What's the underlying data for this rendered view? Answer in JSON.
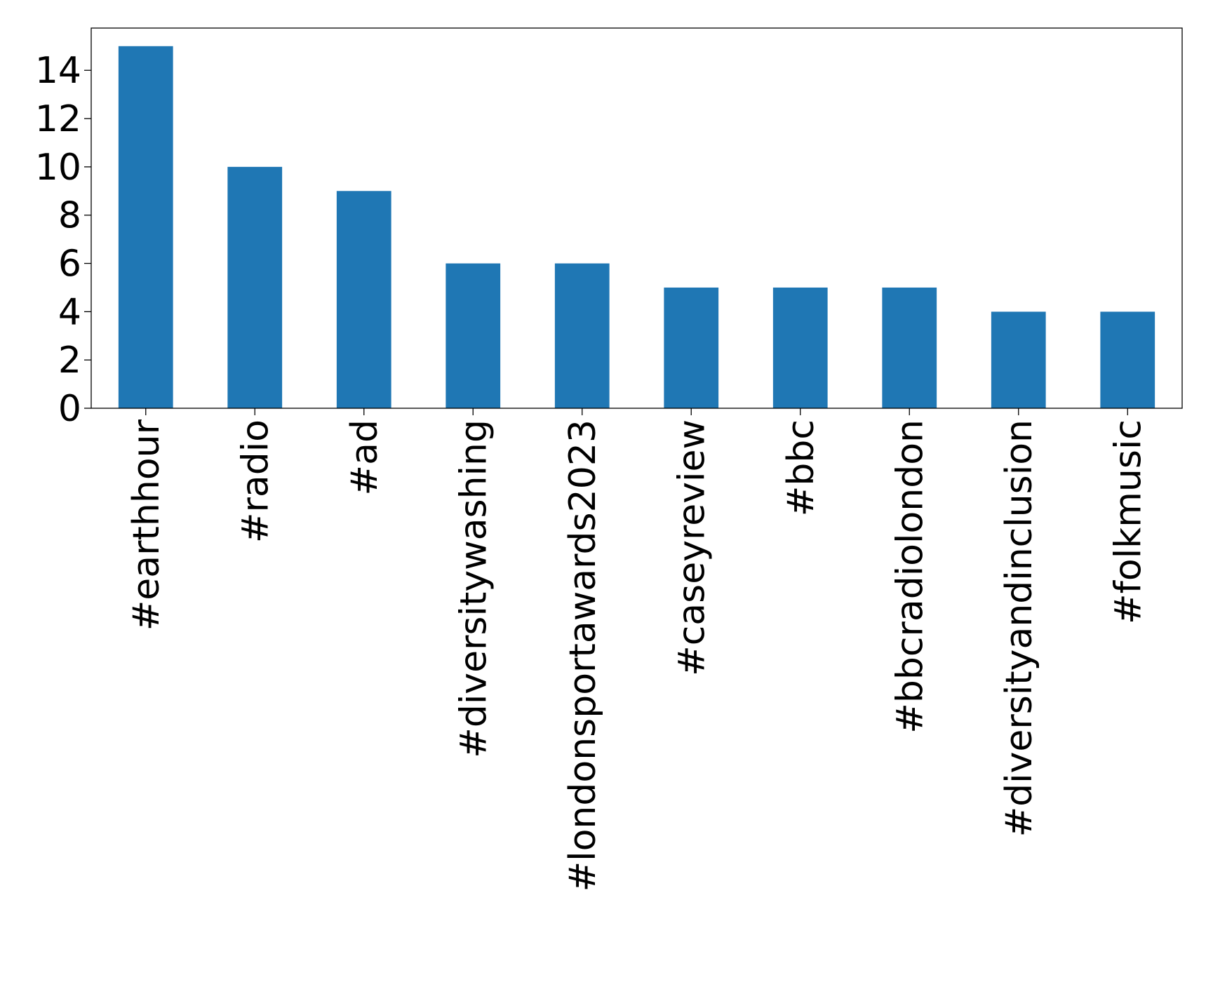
{
  "chart_data": {
    "type": "bar",
    "categories": [
      "#earthhour",
      "#radio",
      "#ad",
      "#diversitywashing",
      "#londonsportawards2023",
      "#caseyreview",
      "#bbc",
      "#bbcradiolondon",
      "#diversityandinclusion",
      "#folkmusic"
    ],
    "values": [
      15,
      10,
      9,
      6,
      6,
      5,
      5,
      5,
      4,
      4
    ],
    "yticks": [
      0,
      2,
      4,
      6,
      8,
      10,
      12,
      14
    ],
    "ylim": [
      0,
      15.75
    ],
    "title": "",
    "xlabel": "",
    "ylabel": "",
    "bar_color": "#1f77b4",
    "grid": false,
    "legend": "none"
  }
}
